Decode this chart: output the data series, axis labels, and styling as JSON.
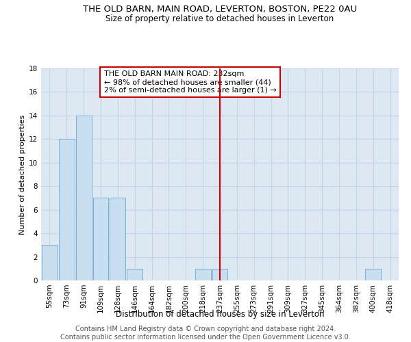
{
  "title": "THE OLD BARN, MAIN ROAD, LEVERTON, BOSTON, PE22 0AU",
  "subtitle": "Size of property relative to detached houses in Leverton",
  "xlabel": "Distribution of detached houses by size in Leverton",
  "ylabel": "Number of detached properties",
  "bar_labels": [
    "55sqm",
    "73sqm",
    "91sqm",
    "109sqm",
    "128sqm",
    "146sqm",
    "164sqm",
    "182sqm",
    "200sqm",
    "218sqm",
    "237sqm",
    "255sqm",
    "273sqm",
    "291sqm",
    "309sqm",
    "327sqm",
    "345sqm",
    "364sqm",
    "382sqm",
    "400sqm",
    "418sqm"
  ],
  "bar_values": [
    3,
    12,
    14,
    7,
    7,
    1,
    0,
    0,
    0,
    1,
    1,
    0,
    0,
    0,
    0,
    0,
    0,
    0,
    0,
    1,
    0
  ],
  "bar_color": "#c8dff2",
  "bar_edge_color": "#7aafd4",
  "vline_x_index": 10,
  "vline_color": "#cc0000",
  "annotation_text": "THE OLD BARN MAIN ROAD: 232sqm\n← 98% of detached houses are smaller (44)\n2% of semi-detached houses are larger (1) →",
  "annotation_box_color": "#cc0000",
  "annotation_bg": "#ffffff",
  "ylim": [
    0,
    18
  ],
  "yticks": [
    0,
    2,
    4,
    6,
    8,
    10,
    12,
    14,
    16,
    18
  ],
  "grid_color": "#c5d5e8",
  "bg_color": "#dde8f3",
  "footer_text": "Contains HM Land Registry data © Crown copyright and database right 2024.\nContains public sector information licensed under the Open Government Licence v3.0.",
  "title_fontsize": 9.5,
  "subtitle_fontsize": 8.5,
  "xlabel_fontsize": 8.5,
  "ylabel_fontsize": 8,
  "tick_fontsize": 7.5,
  "annotation_fontsize": 8,
  "footer_fontsize": 7
}
